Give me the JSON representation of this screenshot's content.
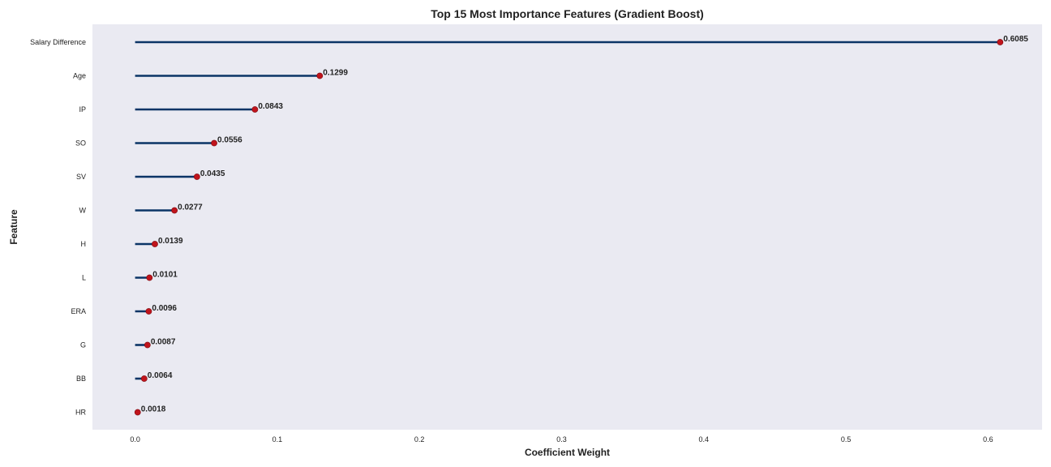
{
  "chart_data": {
    "type": "lollipop",
    "title": "Top 15 Most Importance Features (Gradient Boost)",
    "xlabel": "Coefficient Weight",
    "ylabel": "Feature",
    "xlim": [
      -0.03,
      0.638
    ],
    "xticks": [
      0.0,
      0.1,
      0.2,
      0.3,
      0.4,
      0.5,
      0.6
    ],
    "xtick_labels": [
      "0.0",
      "0.1",
      "0.2",
      "0.3",
      "0.4",
      "0.5",
      "0.6"
    ],
    "grid": false,
    "colors": {
      "background": "#eaeaf2",
      "stem": "#0b3466",
      "marker": "#c0141c"
    },
    "categories": [
      "Salary Difference",
      "Age",
      "IP",
      "SO",
      "SV",
      "W",
      "H",
      "L",
      "ERA",
      "G",
      "BB",
      "HR"
    ],
    "values": [
      0.6085,
      0.1299,
      0.0843,
      0.0556,
      0.0435,
      0.0277,
      0.0139,
      0.0101,
      0.0096,
      0.0087,
      0.0064,
      0.0018
    ],
    "value_labels": [
      "0.6085",
      "0.1299",
      "0.0843",
      "0.0556",
      "0.0435",
      "0.0277",
      "0.0139",
      "0.0101",
      "0.0096",
      "0.0087",
      "0.0064",
      "0.0018"
    ]
  }
}
